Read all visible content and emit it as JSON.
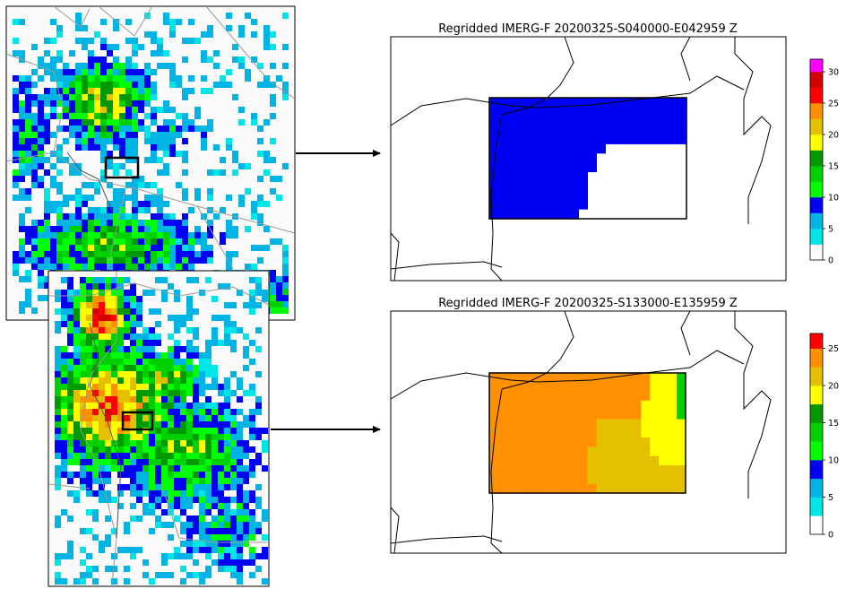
{
  "colors": {
    "precip_scale": [
      "#ffffff",
      "#00e5e5",
      "#00b4e6",
      "#0000f5",
      "#00ff00",
      "#00d000",
      "#009a00",
      "#ffff00",
      "#e5c000",
      "#ff9000",
      "#ff0000",
      "#d50000",
      "#ff00ff",
      "#9955cc"
    ]
  },
  "chart_data": [
    {
      "type": "heatmap",
      "title": "Regridded IMERG-F 20200325-S040000-E042959 Z",
      "colorbar_ticks": [
        "0",
        "5",
        "10",
        "15",
        "20",
        "25",
        "30"
      ],
      "colorbar_max": 32,
      "values": [
        [
          5,
          5,
          5,
          5,
          5,
          5,
          5,
          5,
          5,
          5,
          5,
          5,
          5,
          5,
          5,
          5,
          5,
          5,
          5,
          5,
          5,
          5
        ],
        [
          5,
          5,
          5,
          5,
          5,
          5,
          5,
          5,
          5,
          5,
          5,
          5,
          5,
          5,
          5,
          5,
          5,
          5,
          5,
          5,
          5,
          5
        ],
        [
          5,
          5,
          5,
          5,
          5,
          5,
          5,
          5,
          5,
          5,
          5,
          5,
          5,
          5,
          5,
          5,
          5,
          5,
          5,
          5,
          5,
          5
        ],
        [
          5,
          5,
          5,
          5,
          5,
          5,
          5,
          5,
          5,
          5,
          5,
          5,
          5,
          5,
          5,
          5,
          5,
          5,
          5,
          5,
          5,
          5
        ],
        [
          5,
          5,
          5,
          5,
          5,
          5,
          5,
          5,
          5,
          5,
          5,
          5,
          5,
          5,
          5,
          5,
          5,
          5,
          5,
          5,
          5,
          5
        ],
        [
          5,
          5,
          5,
          5,
          5,
          5,
          5,
          5,
          5,
          5,
          5,
          5,
          5,
          0,
          0,
          0,
          0,
          0,
          0,
          0,
          0,
          0
        ],
        [
          5,
          5,
          5,
          5,
          5,
          5,
          5,
          5,
          5,
          5,
          5,
          5,
          0,
          0,
          0,
          0,
          0,
          0,
          0,
          0,
          0,
          0
        ],
        [
          5,
          5,
          5,
          5,
          5,
          5,
          5,
          5,
          5,
          5,
          5,
          5,
          0,
          0,
          0,
          0,
          0,
          0,
          0,
          0,
          0,
          0
        ],
        [
          5,
          5,
          5,
          5,
          5,
          5,
          5,
          5,
          5,
          5,
          5,
          0,
          0,
          0,
          0,
          0,
          0,
          0,
          0,
          0,
          0,
          0
        ],
        [
          5,
          5,
          5,
          5,
          5,
          5,
          5,
          5,
          5,
          5,
          5,
          0,
          0,
          0,
          0,
          0,
          0,
          0,
          0,
          0,
          0,
          0
        ],
        [
          5,
          5,
          5,
          5,
          5,
          5,
          5,
          5,
          5,
          5,
          5,
          0,
          0,
          0,
          0,
          0,
          0,
          0,
          0,
          0,
          0,
          0
        ],
        [
          5,
          5,
          5,
          5,
          5,
          5,
          5,
          5,
          5,
          5,
          5,
          0,
          0,
          0,
          0,
          0,
          0,
          0,
          0,
          0,
          0,
          0
        ],
        [
          5,
          5,
          5,
          5,
          5,
          5,
          5,
          5,
          5,
          5,
          0,
          0,
          0,
          0,
          0,
          0,
          0,
          0,
          0,
          0,
          0,
          0
        ]
      ]
    },
    {
      "type": "heatmap",
      "title": "Regridded IMERG-F 20200325-S133000-E135959 Z",
      "colorbar_ticks": [
        "0",
        "5",
        "10",
        "15",
        "20",
        "25"
      ],
      "colorbar_max": 27,
      "values": [
        [
          22,
          22,
          22,
          22,
          22,
          22,
          22,
          22,
          22,
          22,
          20,
          20,
          20,
          20,
          20,
          20,
          20,
          20,
          16,
          16,
          16,
          12
        ],
        [
          22,
          22,
          22,
          22,
          22,
          22,
          22,
          22,
          22,
          22,
          20,
          20,
          20,
          20,
          20,
          20,
          20,
          20,
          16,
          16,
          16,
          12
        ],
        [
          22,
          22,
          22,
          22,
          22,
          22,
          22,
          22,
          22,
          22,
          20,
          20,
          20,
          20,
          20,
          20,
          20,
          20,
          16,
          16,
          16,
          12
        ],
        [
          22,
          22,
          22,
          22,
          22,
          22,
          22,
          22,
          22,
          20,
          20,
          20,
          20,
          20,
          20,
          20,
          20,
          16,
          16,
          16,
          16,
          12
        ],
        [
          20,
          20,
          20,
          20,
          20,
          20,
          20,
          20,
          20,
          20,
          20,
          20,
          20,
          20,
          20,
          20,
          20,
          16,
          16,
          16,
          16,
          12
        ],
        [
          20,
          20,
          20,
          20,
          20,
          20,
          20,
          20,
          20,
          20,
          20,
          20,
          18,
          18,
          18,
          18,
          18,
          16,
          16,
          16,
          16,
          16
        ],
        [
          20,
          20,
          20,
          20,
          20,
          20,
          20,
          20,
          20,
          20,
          20,
          20,
          18,
          18,
          18,
          18,
          18,
          16,
          16,
          16,
          16,
          16
        ],
        [
          20,
          20,
          20,
          20,
          20,
          20,
          20,
          20,
          20,
          20,
          20,
          20,
          18,
          18,
          18,
          18,
          18,
          18,
          16,
          16,
          16,
          16
        ],
        [
          20,
          20,
          20,
          20,
          20,
          20,
          20,
          20,
          20,
          20,
          20,
          18,
          18,
          18,
          18,
          18,
          18,
          18,
          16,
          16,
          16,
          16
        ],
        [
          20,
          20,
          20,
          20,
          20,
          20,
          20,
          20,
          20,
          20,
          20,
          18,
          18,
          18,
          18,
          18,
          18,
          18,
          18,
          16,
          16,
          16
        ],
        [
          20,
          20,
          20,
          20,
          20,
          20,
          20,
          20,
          20,
          20,
          20,
          18,
          18,
          18,
          18,
          18,
          18,
          18,
          18,
          18,
          18,
          18
        ],
        [
          20,
          20,
          20,
          20,
          20,
          20,
          20,
          20,
          20,
          20,
          20,
          18,
          18,
          18,
          18,
          18,
          18,
          18,
          18,
          18,
          18,
          18
        ],
        [
          20,
          20,
          20,
          20,
          20,
          20,
          20,
          20,
          20,
          20,
          20,
          20,
          18,
          18,
          18,
          18,
          18,
          18,
          18,
          18,
          18,
          18
        ]
      ]
    }
  ]
}
